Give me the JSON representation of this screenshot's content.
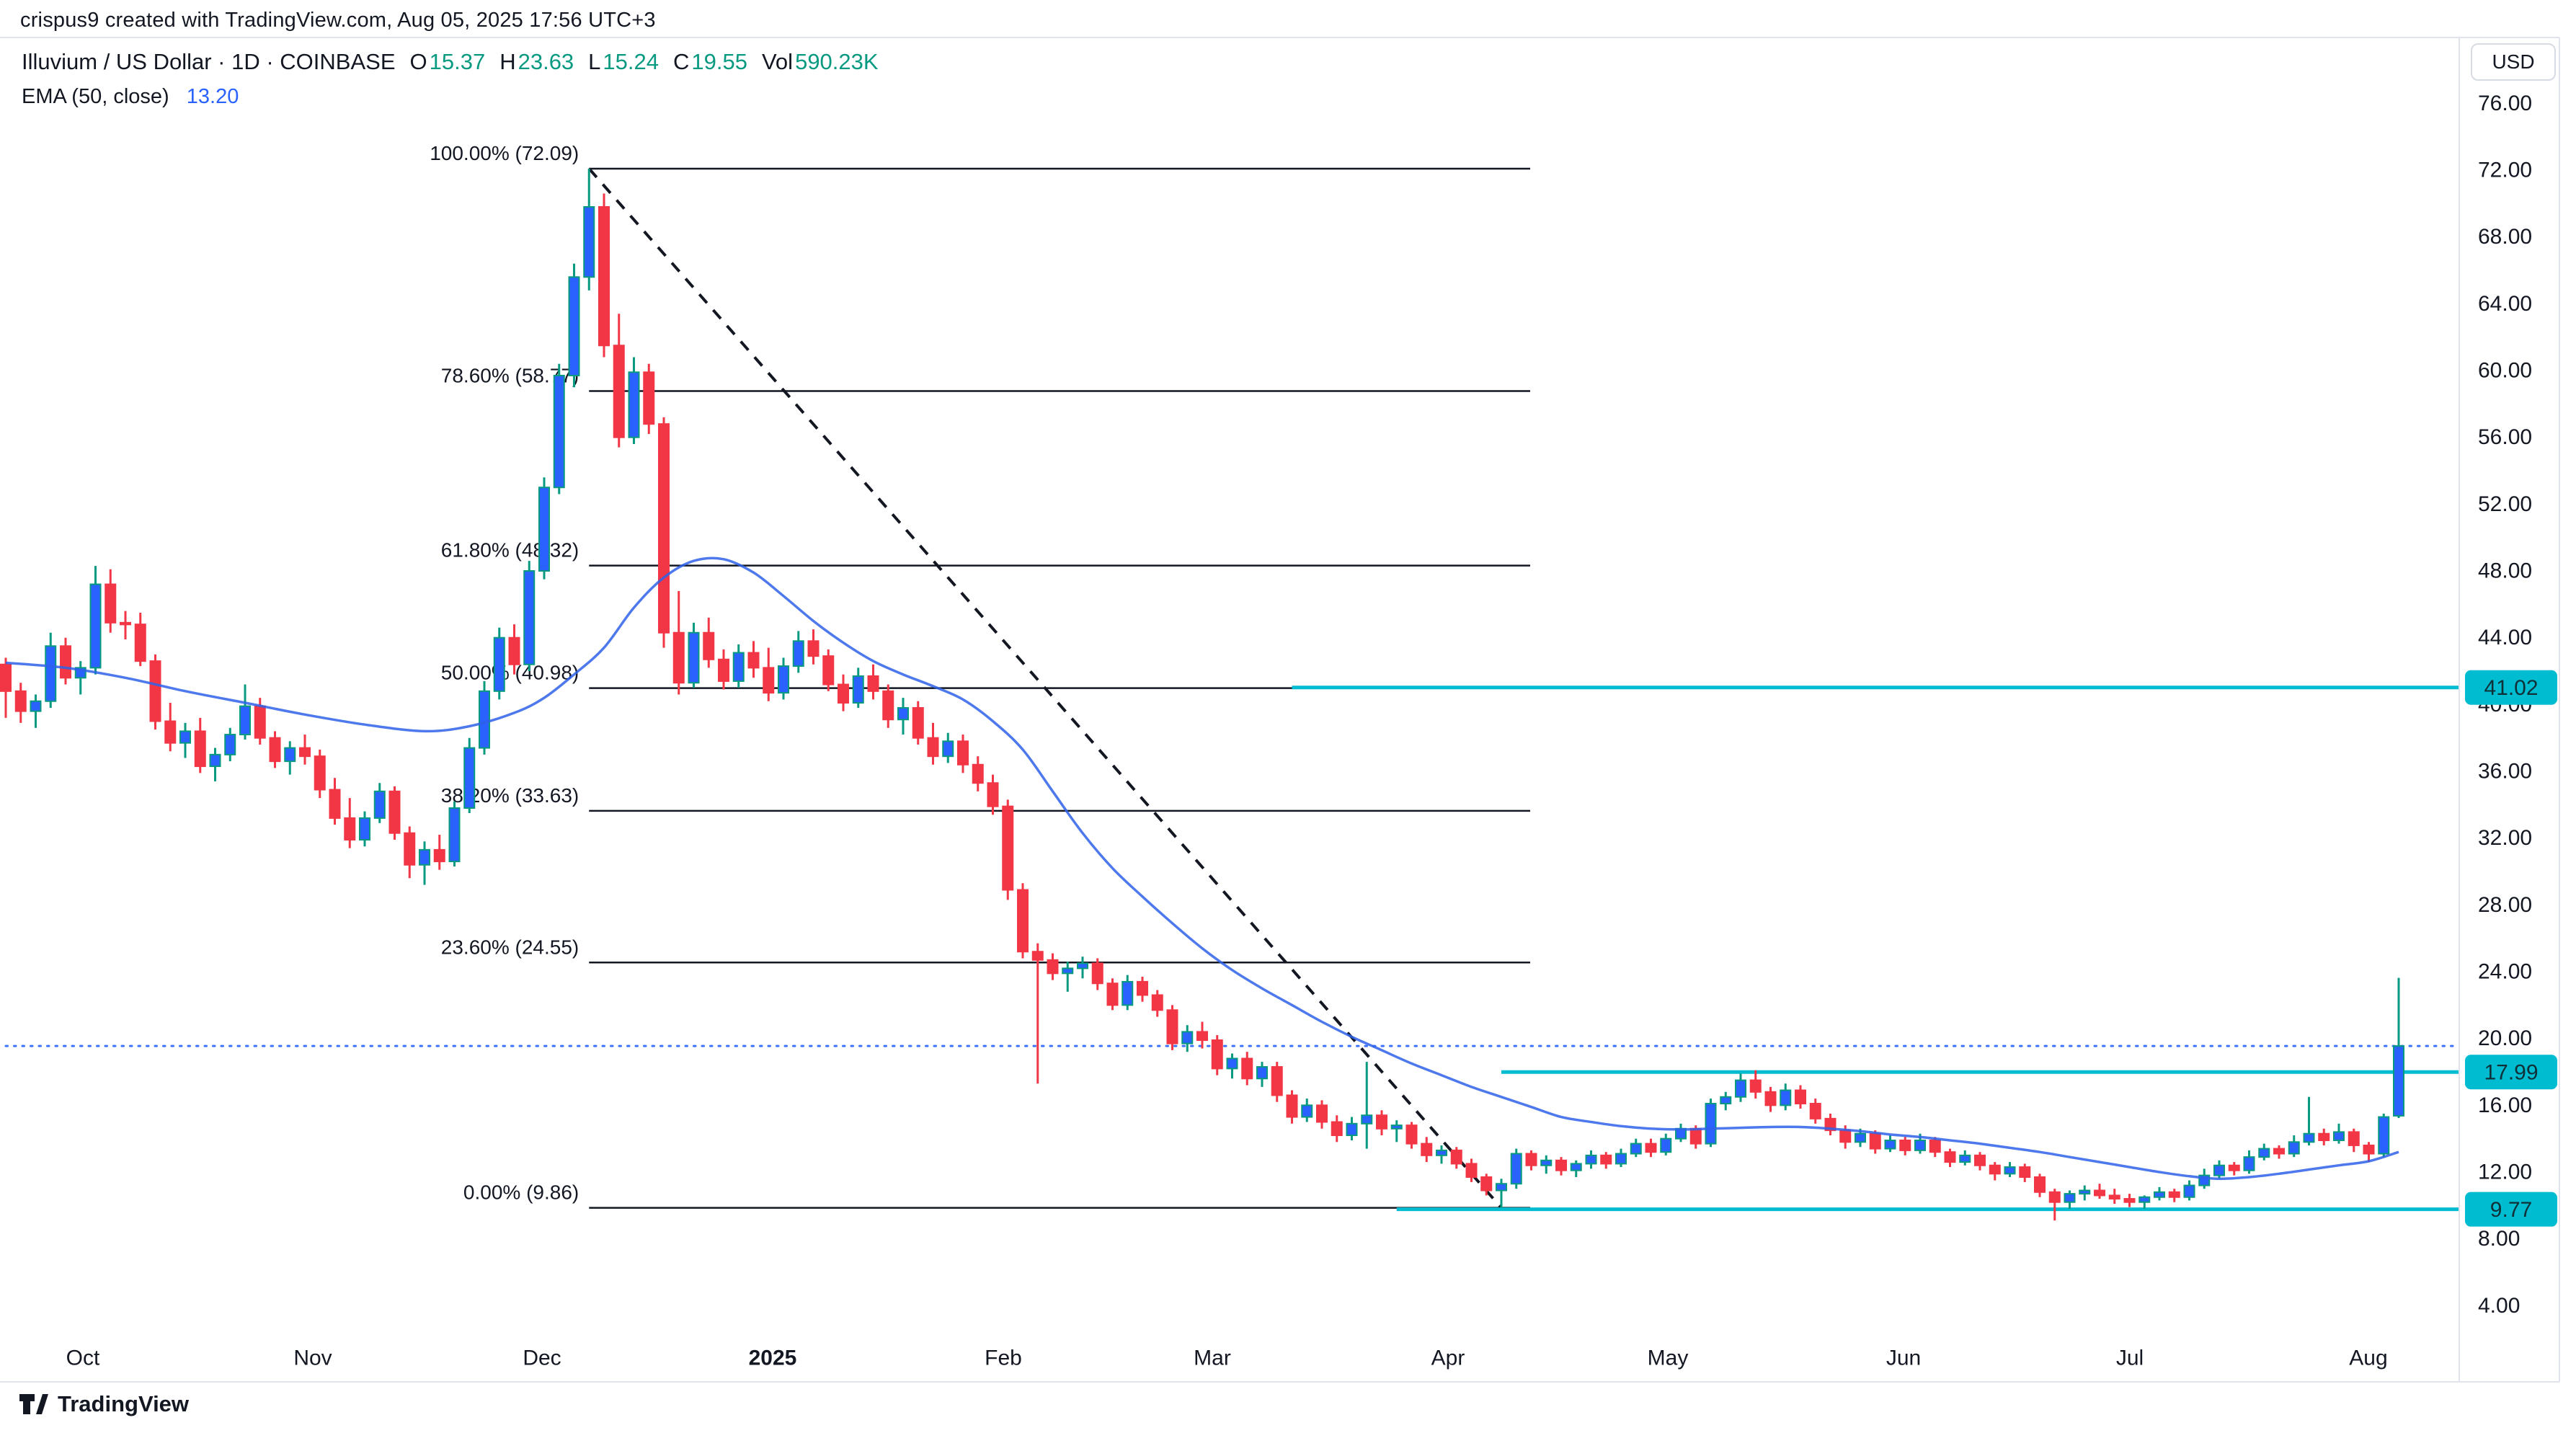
{
  "watermark": "crispus9 created with TradingView.com, Aug 05, 2025 17:56 UTC+3",
  "toolbar": {
    "currency_button": "USD"
  },
  "legend": {
    "title": "Illuvium / US Dollar · 1D · COINBASE",
    "ohlc": [
      {
        "key": "O",
        "value": "15.37"
      },
      {
        "key": "H",
        "value": "23.63"
      },
      {
        "key": "L",
        "value": "15.24"
      },
      {
        "key": "C",
        "value": "19.55"
      },
      {
        "key": "Vol",
        "value": "590.23K"
      }
    ],
    "indicator": {
      "name": "EMA (50, close)",
      "value": "13.20"
    }
  },
  "attribution": {
    "brand": "TradingView"
  },
  "colors": {
    "up_body": "#2962FF",
    "up_border": "#089981",
    "down": "#F23645",
    "ema": "#2E62E9",
    "drawing_cyan": "#00BCD0",
    "close_line_blue": "#2962FF",
    "text_dark": "#131722",
    "border_gray": "#E0E3EB",
    "badge_text": "#103038",
    "trend_black": "#131722"
  },
  "price_axis": {
    "ticks": [
      {
        "t": "76.00",
        "p": 76
      },
      {
        "t": "72.00",
        "p": 72
      },
      {
        "t": "68.00",
        "p": 68
      },
      {
        "t": "64.00",
        "p": 64
      },
      {
        "t": "60.00",
        "p": 60
      },
      {
        "t": "56.00",
        "p": 56
      },
      {
        "t": "52.00",
        "p": 52
      },
      {
        "t": "48.00",
        "p": 48
      },
      {
        "t": "44.00",
        "p": 44
      },
      {
        "t": "40.00",
        "p": 40
      },
      {
        "t": "36.00",
        "p": 36
      },
      {
        "t": "32.00",
        "p": 32
      },
      {
        "t": "28.00",
        "p": 28
      },
      {
        "t": "24.00",
        "p": 24
      },
      {
        "t": "20.00",
        "p": 20
      },
      {
        "t": "16.00",
        "p": 16
      },
      {
        "t": "12.00",
        "p": 12
      },
      {
        "t": "8.00",
        "p": 8
      },
      {
        "t": "4.00",
        "p": 4
      }
    ],
    "badges": [
      {
        "t": "41.02",
        "p": 41.02
      },
      {
        "t": "17.99",
        "p": 17.99
      },
      {
        "t": "9.77",
        "p": 9.77
      }
    ]
  },
  "time_axis": {
    "labels": [
      {
        "t": "Oct",
        "x": 115
      },
      {
        "t": "Nov",
        "x": 434
      },
      {
        "t": "Dec",
        "x": 752
      },
      {
        "t": "2025",
        "x": 1072,
        "bold": true
      },
      {
        "t": "Feb",
        "x": 1392
      },
      {
        "t": "Mar",
        "x": 1682
      },
      {
        "t": "Apr",
        "x": 2009
      },
      {
        "t": "May",
        "x": 2314
      },
      {
        "t": "Jun",
        "x": 2641
      },
      {
        "t": "Jul",
        "x": 2955
      },
      {
        "t": "Aug",
        "x": 3286
      }
    ]
  },
  "chart_data": {
    "type": "candlestick",
    "title": "Illuvium / US Dollar, 1D, COINBASE",
    "ylabel": "USD",
    "ylim": [
      2.3,
      80.0
    ],
    "x_range_labels": [
      "Oct",
      "Nov",
      "Dec",
      "2025",
      "Feb",
      "Mar",
      "Apr",
      "May",
      "Jun",
      "Jul",
      "Aug"
    ],
    "last_bar_ohlc": {
      "open": 15.37,
      "high": 23.63,
      "low": 15.24,
      "close": 19.55,
      "volume": "590.23K"
    },
    "candles": [
      [
        42.4,
        42.8,
        39.2,
        40.8
      ],
      [
        40.8,
        41.3,
        38.9,
        39.6
      ],
      [
        39.6,
        40.6,
        38.6,
        40.2
      ],
      [
        40.2,
        44.3,
        39.8,
        43.5
      ],
      [
        43.5,
        44.0,
        41.2,
        41.6
      ],
      [
        41.6,
        42.6,
        40.6,
        42.2
      ],
      [
        42.2,
        48.3,
        41.8,
        47.2
      ],
      [
        47.2,
        48.1,
        44.3,
        44.9
      ],
      [
        44.9,
        45.6,
        43.9,
        44.8
      ],
      [
        44.8,
        45.5,
        42.3,
        42.6
      ],
      [
        42.6,
        43.0,
        38.5,
        39.0
      ],
      [
        39.0,
        40.1,
        37.2,
        37.7
      ],
      [
        37.7,
        38.9,
        36.8,
        38.4
      ],
      [
        38.4,
        39.2,
        35.9,
        36.3
      ],
      [
        36.3,
        37.4,
        35.4,
        37.0
      ],
      [
        37.0,
        38.6,
        36.6,
        38.2
      ],
      [
        38.2,
        41.2,
        37.9,
        39.9
      ],
      [
        39.9,
        40.4,
        37.6,
        38.0
      ],
      [
        38.0,
        38.4,
        36.2,
        36.6
      ],
      [
        36.6,
        37.8,
        35.8,
        37.4
      ],
      [
        37.4,
        38.2,
        36.4,
        36.9
      ],
      [
        36.9,
        37.3,
        34.4,
        34.9
      ],
      [
        34.9,
        35.6,
        32.8,
        33.2
      ],
      [
        33.2,
        34.4,
        31.4,
        31.9
      ],
      [
        31.9,
        33.6,
        31.5,
        33.2
      ],
      [
        33.2,
        35.3,
        32.9,
        34.8
      ],
      [
        34.8,
        35.1,
        31.9,
        32.3
      ],
      [
        32.3,
        32.7,
        29.6,
        30.4
      ],
      [
        30.4,
        31.8,
        29.2,
        31.3
      ],
      [
        31.3,
        32.2,
        30.1,
        30.6
      ],
      [
        30.6,
        34.2,
        30.3,
        33.8
      ],
      [
        33.8,
        38.0,
        33.5,
        37.4
      ],
      [
        37.4,
        41.4,
        37.0,
        40.8
      ],
      [
        40.8,
        44.6,
        40.3,
        44.0
      ],
      [
        44.0,
        44.8,
        41.8,
        42.4
      ],
      [
        42.4,
        48.6,
        42.0,
        48.0
      ],
      [
        48.0,
        53.6,
        47.5,
        53.0
      ],
      [
        53.0,
        60.4,
        52.6,
        59.7
      ],
      [
        59.7,
        66.4,
        59.0,
        65.6
      ],
      [
        65.6,
        72.09,
        64.8,
        69.8
      ],
      [
        69.8,
        70.6,
        60.8,
        61.5
      ],
      [
        61.5,
        63.4,
        55.4,
        56.0
      ],
      [
        56.0,
        60.8,
        55.6,
        59.9
      ],
      [
        59.9,
        60.4,
        56.2,
        56.8
      ],
      [
        56.8,
        57.2,
        43.4,
        44.3
      ],
      [
        44.3,
        46.8,
        40.6,
        41.3
      ],
      [
        41.3,
        44.9,
        41.0,
        44.3
      ],
      [
        44.3,
        45.2,
        42.2,
        42.7
      ],
      [
        42.7,
        43.3,
        40.9,
        41.4
      ],
      [
        41.4,
        43.6,
        41.0,
        43.1
      ],
      [
        43.1,
        43.8,
        41.6,
        42.2
      ],
      [
        42.2,
        43.4,
        40.2,
        40.7
      ],
      [
        40.7,
        42.8,
        40.3,
        42.3
      ],
      [
        42.3,
        44.4,
        41.9,
        43.8
      ],
      [
        43.8,
        44.5,
        42.4,
        42.9
      ],
      [
        42.9,
        43.3,
        40.8,
        41.2
      ],
      [
        41.2,
        41.8,
        39.6,
        40.1
      ],
      [
        40.1,
        42.2,
        39.8,
        41.7
      ],
      [
        41.7,
        42.4,
        40.3,
        40.8
      ],
      [
        40.8,
        41.2,
        38.6,
        39.1
      ],
      [
        39.1,
        40.4,
        38.2,
        39.8
      ],
      [
        39.8,
        40.2,
        37.6,
        38.0
      ],
      [
        38.0,
        38.9,
        36.4,
        36.9
      ],
      [
        36.9,
        38.3,
        36.5,
        37.8
      ],
      [
        37.8,
        38.2,
        35.9,
        36.4
      ],
      [
        36.4,
        36.9,
        34.8,
        35.3
      ],
      [
        35.3,
        35.8,
        33.4,
        33.9
      ],
      [
        33.9,
        34.3,
        28.3,
        28.9
      ],
      [
        28.9,
        29.3,
        24.8,
        25.2
      ],
      [
        25.2,
        25.7,
        17.3,
        24.7
      ],
      [
        24.7,
        25.1,
        23.5,
        23.9
      ],
      [
        23.9,
        24.6,
        22.8,
        24.2
      ],
      [
        24.2,
        24.9,
        23.6,
        24.5
      ],
      [
        24.5,
        24.8,
        22.9,
        23.3
      ],
      [
        23.3,
        23.6,
        21.7,
        22.0
      ],
      [
        22.0,
        23.8,
        21.7,
        23.4
      ],
      [
        23.4,
        23.7,
        22.2,
        22.6
      ],
      [
        22.6,
        22.9,
        21.3,
        21.7
      ],
      [
        21.7,
        22.0,
        19.3,
        19.7
      ],
      [
        19.7,
        20.8,
        19.2,
        20.4
      ],
      [
        20.4,
        21.0,
        19.4,
        19.9
      ],
      [
        19.9,
        20.2,
        17.8,
        18.2
      ],
      [
        18.2,
        19.1,
        17.6,
        18.8
      ],
      [
        18.8,
        19.2,
        17.2,
        17.6
      ],
      [
        17.6,
        18.6,
        17.1,
        18.3
      ],
      [
        18.3,
        18.6,
        16.2,
        16.6
      ],
      [
        16.6,
        16.9,
        14.9,
        15.3
      ],
      [
        15.3,
        16.4,
        15.0,
        16.0
      ],
      [
        16.0,
        16.3,
        14.6,
        15.0
      ],
      [
        15.0,
        15.4,
        13.8,
        14.2
      ],
      [
        14.2,
        15.3,
        13.9,
        14.9
      ],
      [
        14.9,
        18.6,
        13.4,
        15.4
      ],
      [
        15.4,
        15.7,
        14.2,
        14.6
      ],
      [
        14.6,
        15.1,
        13.8,
        14.8
      ],
      [
        14.8,
        15.0,
        13.4,
        13.7
      ],
      [
        13.7,
        14.1,
        12.6,
        13.0
      ],
      [
        13.0,
        13.6,
        12.5,
        13.3
      ],
      [
        13.3,
        13.5,
        12.2,
        12.5
      ],
      [
        12.5,
        12.8,
        11.4,
        11.7
      ],
      [
        11.7,
        11.9,
        10.6,
        10.9
      ],
      [
        10.9,
        11.6,
        9.86,
        11.3
      ],
      [
        11.3,
        13.4,
        11.0,
        13.1
      ],
      [
        13.1,
        13.3,
        12.1,
        12.4
      ],
      [
        12.4,
        13.0,
        11.9,
        12.7
      ],
      [
        12.7,
        12.9,
        11.8,
        12.1
      ],
      [
        12.1,
        12.7,
        11.7,
        12.5
      ],
      [
        12.5,
        13.3,
        12.2,
        13.0
      ],
      [
        13.0,
        13.2,
        12.2,
        12.5
      ],
      [
        12.5,
        13.4,
        12.3,
        13.1
      ],
      [
        13.1,
        14.0,
        12.9,
        13.7
      ],
      [
        13.7,
        14.0,
        12.9,
        13.2
      ],
      [
        13.2,
        14.3,
        13.0,
        14.0
      ],
      [
        14.0,
        14.9,
        13.8,
        14.6
      ],
      [
        14.6,
        14.8,
        13.4,
        13.7
      ],
      [
        13.7,
        16.4,
        13.5,
        16.1
      ],
      [
        16.1,
        16.8,
        15.7,
        16.5
      ],
      [
        16.5,
        17.9,
        16.2,
        17.5
      ],
      [
        17.5,
        18.1,
        16.4,
        16.8
      ],
      [
        16.8,
        17.1,
        15.6,
        16.0
      ],
      [
        16.0,
        17.3,
        15.7,
        16.9
      ],
      [
        16.9,
        17.2,
        15.8,
        16.1
      ],
      [
        16.1,
        16.4,
        14.9,
        15.2
      ],
      [
        15.2,
        15.5,
        14.2,
        14.5
      ],
      [
        14.5,
        14.8,
        13.4,
        13.8
      ],
      [
        13.8,
        14.6,
        13.5,
        14.3
      ],
      [
        14.3,
        14.5,
        13.1,
        13.4
      ],
      [
        13.4,
        14.2,
        13.2,
        13.9
      ],
      [
        13.9,
        14.1,
        13.0,
        13.3
      ],
      [
        13.3,
        14.3,
        13.1,
        13.9
      ],
      [
        13.9,
        14.1,
        12.9,
        13.2
      ],
      [
        13.2,
        13.4,
        12.3,
        12.6
      ],
      [
        12.6,
        13.3,
        12.4,
        13.0
      ],
      [
        13.0,
        13.2,
        12.1,
        12.4
      ],
      [
        12.4,
        12.6,
        11.5,
        11.9
      ],
      [
        11.9,
        12.6,
        11.7,
        12.3
      ],
      [
        12.3,
        12.5,
        11.4,
        11.7
      ],
      [
        11.7,
        11.9,
        10.5,
        10.8
      ],
      [
        10.8,
        11.0,
        9.1,
        10.2
      ],
      [
        10.2,
        10.9,
        9.8,
        10.7
      ],
      [
        10.7,
        11.2,
        10.3,
        10.9
      ],
      [
        10.9,
        11.3,
        10.4,
        10.6
      ],
      [
        10.6,
        11.0,
        10.1,
        10.4
      ],
      [
        10.4,
        10.7,
        9.9,
        10.2
      ],
      [
        10.2,
        10.6,
        9.8,
        10.5
      ],
      [
        10.5,
        11.1,
        10.3,
        10.8
      ],
      [
        10.8,
        11.0,
        10.2,
        10.5
      ],
      [
        10.5,
        11.5,
        10.3,
        11.2
      ],
      [
        11.2,
        12.2,
        11.0,
        11.8
      ],
      [
        11.8,
        12.7,
        11.6,
        12.4
      ],
      [
        12.4,
        12.6,
        11.8,
        12.1
      ],
      [
        12.1,
        13.3,
        11.9,
        12.9
      ],
      [
        12.9,
        13.7,
        12.7,
        13.4
      ],
      [
        13.4,
        13.6,
        12.8,
        13.1
      ],
      [
        13.1,
        14.2,
        12.9,
        13.8
      ],
      [
        13.8,
        16.5,
        13.6,
        14.3
      ],
      [
        14.3,
        14.6,
        13.6,
        13.9
      ],
      [
        13.9,
        14.9,
        13.7,
        14.4
      ],
      [
        14.4,
        14.6,
        13.2,
        13.6
      ],
      [
        13.6,
        13.8,
        12.6,
        13.1
      ],
      [
        13.1,
        15.5,
        12.9,
        15.3
      ],
      [
        15.37,
        23.63,
        15.24,
        19.55
      ]
    ],
    "ema50": [
      [
        0,
        42.5
      ],
      [
        4,
        42.2
      ],
      [
        8,
        41.6
      ],
      [
        12,
        40.8
      ],
      [
        16,
        40.1
      ],
      [
        20,
        39.4
      ],
      [
        24,
        38.8
      ],
      [
        28,
        38.4
      ],
      [
        31,
        38.7
      ],
      [
        34,
        39.5
      ],
      [
        36,
        40.4
      ],
      [
        38,
        41.8
      ],
      [
        40,
        43.4
      ],
      [
        42,
        45.8
      ],
      [
        44,
        47.6
      ],
      [
        46,
        48.6
      ],
      [
        48,
        48.7
      ],
      [
        50,
        47.9
      ],
      [
        52,
        46.5
      ],
      [
        54,
        45.0
      ],
      [
        56,
        43.7
      ],
      [
        58,
        42.6
      ],
      [
        60,
        41.8
      ],
      [
        62,
        41.1
      ],
      [
        64,
        40.3
      ],
      [
        66,
        39.0
      ],
      [
        68,
        37.3
      ],
      [
        70,
        34.8
      ],
      [
        72,
        32.3
      ],
      [
        74,
        30.2
      ],
      [
        76,
        28.5
      ],
      [
        78,
        26.9
      ],
      [
        80,
        25.4
      ],
      [
        82,
        24.1
      ],
      [
        84,
        23.0
      ],
      [
        86,
        22.0
      ],
      [
        88,
        21.0
      ],
      [
        90,
        20.1
      ],
      [
        92,
        19.3
      ],
      [
        94,
        18.5
      ],
      [
        96,
        17.8
      ],
      [
        98,
        17.1
      ],
      [
        100,
        16.5
      ],
      [
        102,
        15.9
      ],
      [
        104,
        15.3
      ],
      [
        106,
        15.0
      ],
      [
        108,
        14.75
      ],
      [
        110,
        14.6
      ],
      [
        112,
        14.55
      ],
      [
        114,
        14.6
      ],
      [
        116,
        14.65
      ],
      [
        118,
        14.7
      ],
      [
        120,
        14.7
      ],
      [
        122,
        14.6
      ],
      [
        124,
        14.45
      ],
      [
        126,
        14.25
      ],
      [
        128,
        14.1
      ],
      [
        130,
        13.9
      ],
      [
        132,
        13.7
      ],
      [
        134,
        13.45
      ],
      [
        136,
        13.2
      ],
      [
        138,
        12.9
      ],
      [
        140,
        12.6
      ],
      [
        142,
        12.3
      ],
      [
        144,
        12.0
      ],
      [
        146,
        11.75
      ],
      [
        148,
        11.6
      ],
      [
        150,
        11.7
      ],
      [
        152,
        11.9
      ],
      [
        154,
        12.15
      ],
      [
        156,
        12.4
      ],
      [
        158,
        12.65
      ],
      [
        160,
        13.2
      ]
    ],
    "fibonacci": {
      "anchor_high_bar": 39,
      "anchor_low_bar": 100,
      "extend_to_x": 2123,
      "levels": [
        {
          "label": "100.00% (72.09)",
          "price": 72.09
        },
        {
          "label": "78.60% (58.77)",
          "price": 58.77
        },
        {
          "label": "61.80% (48.32)",
          "price": 48.32
        },
        {
          "label": "50.00% (40.98)",
          "price": 40.98
        },
        {
          "label": "38.20% (33.63)",
          "price": 33.63
        },
        {
          "label": "23.60% (24.55)",
          "price": 24.55
        },
        {
          "label": "0.00% (9.86)",
          "price": 9.86
        }
      ]
    },
    "trendline": {
      "from_bar": 39,
      "from_price": 72.09,
      "to_bar": 100,
      "to_price": 9.86,
      "style": "dashed"
    },
    "horizontal_rays": [
      {
        "price": 41.02,
        "start_bar": 86
      },
      {
        "price": 17.99,
        "start_bar": 100
      },
      {
        "price": 9.77,
        "start_bar": 93
      }
    ],
    "close_price_line": 19.55
  }
}
